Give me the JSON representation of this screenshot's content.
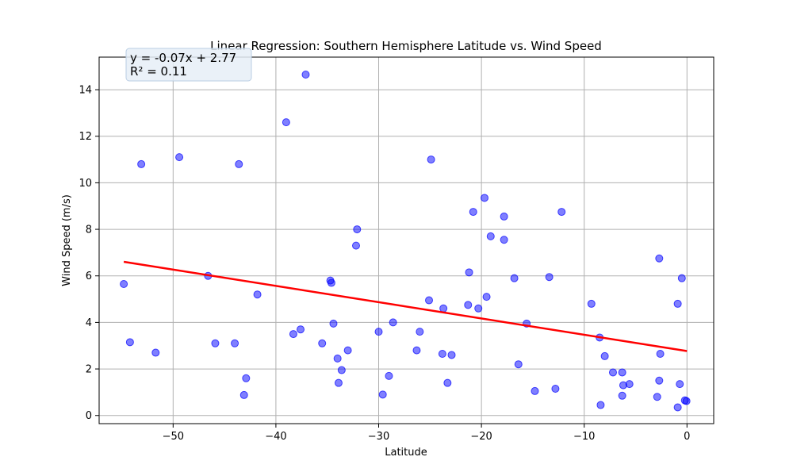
{
  "chart_data": {
    "type": "scatter",
    "title": "Linear Regression: Southern Hemisphere Latitude vs. Wind Speed",
    "xlabel": "Latitude",
    "ylabel": "Wind Speed (m/s)",
    "xlim": [
      -57.2,
      2.6
    ],
    "ylim": [
      -0.35,
      15.4
    ],
    "x_ticks": [
      -50,
      -40,
      -30,
      -20,
      -10,
      0
    ],
    "y_ticks": [
      0,
      2,
      4,
      6,
      8,
      10,
      12,
      14
    ],
    "grid": true,
    "point_color": "#0000ff",
    "line_color": "#ff0000",
    "annotation": {
      "equation": "y = -0.07x + 2.77",
      "r_squared": "R² = 0.11"
    },
    "regression": {
      "slope": -0.07,
      "intercept": 2.77,
      "x_range": [
        -54.8,
        0
      ]
    },
    "points": [
      {
        "x": -54.8,
        "y": 5.65
      },
      {
        "x": -54.2,
        "y": 3.15
      },
      {
        "x": -53.1,
        "y": 10.8
      },
      {
        "x": -51.7,
        "y": 2.7
      },
      {
        "x": -49.4,
        "y": 11.1
      },
      {
        "x": -46.6,
        "y": 6.0
      },
      {
        "x": -45.9,
        "y": 3.1
      },
      {
        "x": -44.0,
        "y": 3.1
      },
      {
        "x": -43.6,
        "y": 10.8
      },
      {
        "x": -43.1,
        "y": 0.88
      },
      {
        "x": -42.9,
        "y": 1.6
      },
      {
        "x": -41.8,
        "y": 5.2
      },
      {
        "x": -39.0,
        "y": 12.6
      },
      {
        "x": -38.3,
        "y": 3.5
      },
      {
        "x": -37.6,
        "y": 3.7
      },
      {
        "x": -37.1,
        "y": 14.65
      },
      {
        "x": -35.5,
        "y": 3.1
      },
      {
        "x": -34.7,
        "y": 5.8
      },
      {
        "x": -34.6,
        "y": 5.7
      },
      {
        "x": -34.4,
        "y": 3.95
      },
      {
        "x": -34.0,
        "y": 2.45
      },
      {
        "x": -33.9,
        "y": 1.4
      },
      {
        "x": -33.6,
        "y": 1.95
      },
      {
        "x": -33.0,
        "y": 2.8
      },
      {
        "x": -32.1,
        "y": 8.0
      },
      {
        "x": -32.2,
        "y": 7.3
      },
      {
        "x": -30.0,
        "y": 3.6
      },
      {
        "x": -29.6,
        "y": 0.9
      },
      {
        "x": -29.0,
        "y": 1.7
      },
      {
        "x": -28.6,
        "y": 4.0
      },
      {
        "x": -26.3,
        "y": 2.8
      },
      {
        "x": -26.0,
        "y": 3.6
      },
      {
        "x": -25.1,
        "y": 4.95
      },
      {
        "x": -24.9,
        "y": 11.0
      },
      {
        "x": -23.8,
        "y": 2.65
      },
      {
        "x": -23.7,
        "y": 4.6
      },
      {
        "x": -23.3,
        "y": 1.4
      },
      {
        "x": -22.9,
        "y": 2.6
      },
      {
        "x": -21.3,
        "y": 4.75
      },
      {
        "x": -21.2,
        "y": 6.15
      },
      {
        "x": -20.8,
        "y": 8.75
      },
      {
        "x": -20.3,
        "y": 4.6
      },
      {
        "x": -19.7,
        "y": 9.35
      },
      {
        "x": -19.5,
        "y": 5.1
      },
      {
        "x": -19.1,
        "y": 7.7
      },
      {
        "x": -17.8,
        "y": 8.55
      },
      {
        "x": -17.8,
        "y": 7.55
      },
      {
        "x": -16.8,
        "y": 5.9
      },
      {
        "x": -16.4,
        "y": 2.2
      },
      {
        "x": -15.6,
        "y": 3.95
      },
      {
        "x": -14.8,
        "y": 1.05
      },
      {
        "x": -13.4,
        "y": 5.95
      },
      {
        "x": -12.8,
        "y": 1.15
      },
      {
        "x": -12.2,
        "y": 8.75
      },
      {
        "x": -9.3,
        "y": 4.8
      },
      {
        "x": -8.5,
        "y": 3.35
      },
      {
        "x": -8.4,
        "y": 0.45
      },
      {
        "x": -8.0,
        "y": 2.55
      },
      {
        "x": -7.2,
        "y": 1.85
      },
      {
        "x": -6.3,
        "y": 1.85
      },
      {
        "x": -6.2,
        "y": 1.3
      },
      {
        "x": -6.3,
        "y": 0.85
      },
      {
        "x": -5.6,
        "y": 1.35
      },
      {
        "x": -2.9,
        "y": 0.8
      },
      {
        "x": -2.7,
        "y": 6.75
      },
      {
        "x": -2.6,
        "y": 2.65
      },
      {
        "x": -2.7,
        "y": 1.5
      },
      {
        "x": -0.9,
        "y": 4.8
      },
      {
        "x": -0.9,
        "y": 0.35
      },
      {
        "x": -0.7,
        "y": 1.35
      },
      {
        "x": -0.5,
        "y": 5.9
      },
      {
        "x": -0.2,
        "y": 0.65
      },
      {
        "x": -0.05,
        "y": 0.62
      }
    ]
  }
}
